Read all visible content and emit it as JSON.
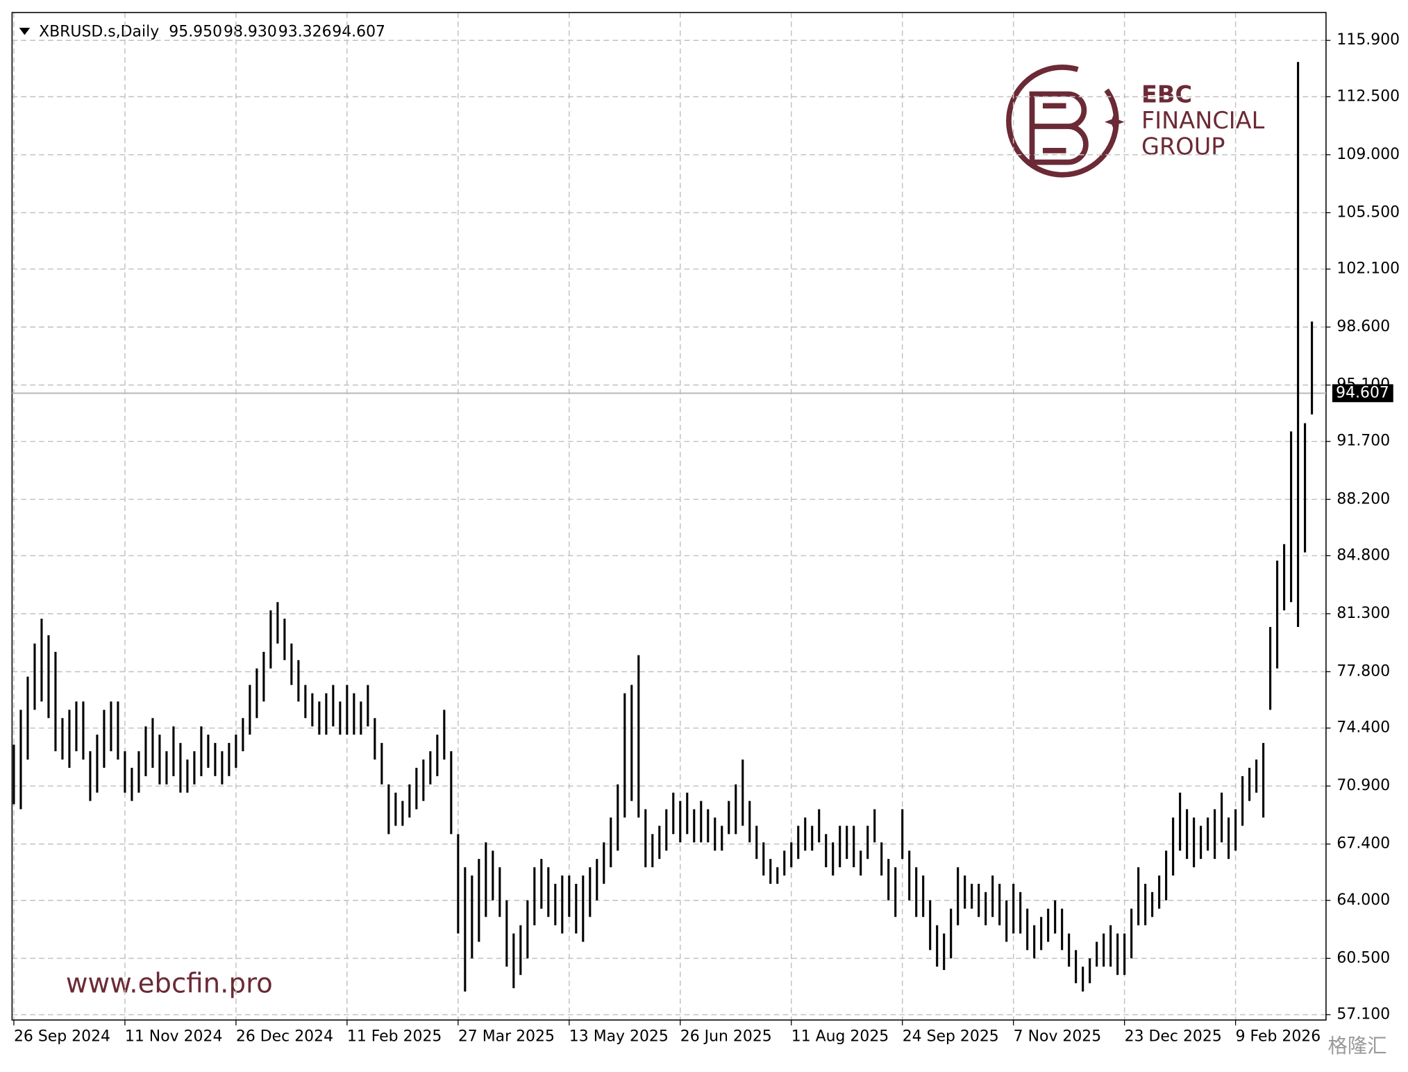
{
  "chart_data": {
    "type": "ohlc",
    "header": {
      "symbol": "XBRUSD.s,Daily",
      "open": "95.950",
      "high": "98.930",
      "low": "93.326",
      "close": "94.607"
    },
    "last_price": {
      "value": 94.607,
      "label": "94.607"
    },
    "ylim": [
      56.78,
      117.58
    ],
    "yticks": [
      {
        "value": 115.9,
        "label": "115.900"
      },
      {
        "value": 112.5,
        "label": "112.500"
      },
      {
        "value": 109.0,
        "label": "109.000"
      },
      {
        "value": 105.5,
        "label": "105.500"
      },
      {
        "value": 102.1,
        "label": "102.100"
      },
      {
        "value": 98.6,
        "label": "98.600"
      },
      {
        "value": 95.1,
        "label": "95.100"
      },
      {
        "value": 91.7,
        "label": "91.700"
      },
      {
        "value": 88.2,
        "label": "88.200"
      },
      {
        "value": 84.8,
        "label": "84.800"
      },
      {
        "value": 81.3,
        "label": "81.300"
      },
      {
        "value": 77.8,
        "label": "77.800"
      },
      {
        "value": 74.4,
        "label": "74.400"
      },
      {
        "value": 70.9,
        "label": "70.900"
      },
      {
        "value": 67.4,
        "label": "67.400"
      },
      {
        "value": 64.0,
        "label": "64.000"
      },
      {
        "value": 60.5,
        "label": "60.500"
      },
      {
        "value": 57.1,
        "label": "57.100"
      }
    ],
    "xlim": [
      0,
      188
    ],
    "xticks": [
      {
        "value": 0,
        "label": "26 Sep 2024"
      },
      {
        "value": 16,
        "label": "11 Nov 2024"
      },
      {
        "value": 32,
        "label": "26 Dec 2024"
      },
      {
        "value": 48,
        "label": "11 Feb 2025"
      },
      {
        "value": 64,
        "label": "27 Mar 2025"
      },
      {
        "value": 80,
        "label": "13 May 2025"
      },
      {
        "value": 96,
        "label": "26 Jun 2025"
      },
      {
        "value": 112,
        "label": "11 Aug 2025"
      },
      {
        "value": 128,
        "label": "24 Sep 2025"
      },
      {
        "value": 144,
        "label": "7 Nov 2025"
      },
      {
        "value": 160,
        "label": "23 Dec 2025"
      },
      {
        "value": 176,
        "label": "9 Feb 2026"
      }
    ],
    "grid": true,
    "color": "#000000",
    "high": [
      73.4,
      75.5,
      77.5,
      79.5,
      81,
      80,
      79,
      75,
      75.5,
      76,
      76,
      73,
      74,
      75.5,
      76,
      76,
      73,
      72,
      73,
      74.5,
      75,
      74,
      73,
      74.5,
      73.5,
      72.5,
      73,
      74.5,
      74,
      73.5,
      73,
      73.5,
      74,
      75,
      77,
      78,
      79,
      81.5,
      82,
      81,
      79.5,
      78.5,
      77,
      76.5,
      76,
      76.5,
      77,
      76,
      77,
      76.5,
      76,
      77,
      75,
      73.5,
      71,
      70.5,
      70,
      71,
      72,
      72.5,
      73,
      74,
      75.5,
      73,
      68,
      66,
      65.5,
      66.5,
      67.5,
      67,
      66,
      64,
      62,
      62.5,
      64,
      66,
      66.5,
      66,
      65,
      65.5,
      65.5,
      65,
      65.5,
      66,
      66.5,
      67.5,
      69,
      71,
      76.5,
      77,
      78.8,
      69.5,
      68,
      68.5,
      69.5,
      70.5,
      70,
      70.5,
      69.5,
      70,
      69.5,
      69,
      68.5,
      70,
      71,
      72.5,
      70,
      68.5,
      67.5,
      66.5,
      66,
      67,
      67.5,
      68.5,
      69,
      68.5,
      69.5,
      68,
      67.5,
      68.5,
      68.5,
      68.5,
      67,
      68.5,
      69.5,
      67.5,
      66.5,
      66,
      69.5,
      67,
      66,
      65.5,
      64,
      62.5,
      62,
      63.5,
      66,
      65.5,
      65,
      65,
      64.5,
      65.5,
      65,
      64,
      65,
      64.5,
      63.5,
      62.5,
      63,
      63.5,
      64,
      63.5,
      62,
      61,
      60,
      60.5,
      61.5,
      62,
      62.5,
      62,
      62,
      63.5,
      66,
      65,
      64.5,
      65.5,
      67,
      69,
      70.5,
      69.5,
      69,
      68.5,
      69,
      69.5,
      70.5,
      69,
      69.5,
      71.5,
      72,
      72.5,
      73.5,
      80.5,
      84.5,
      85.5,
      92.3,
      114.6,
      92.8,
      98.93
    ],
    "low": [
      69.8,
      69.5,
      72.5,
      75.5,
      76,
      75,
      73,
      72.5,
      72,
      73,
      72.5,
      70,
      70.5,
      72,
      73,
      72.5,
      70.5,
      70,
      70.5,
      71.5,
      72,
      71,
      71,
      71.5,
      70.5,
      70.5,
      71,
      71.5,
      72,
      71.5,
      71,
      71.5,
      72,
      73,
      74,
      75,
      76,
      78,
      79.5,
      78.5,
      77,
      76,
      75,
      74.5,
      74,
      74,
      74.5,
      74,
      74,
      74,
      74,
      74.5,
      72.5,
      71,
      68,
      68.5,
      68.5,
      69,
      69.5,
      70,
      71,
      71.5,
      72.5,
      68,
      62,
      58.5,
      60.5,
      61.5,
      63,
      64,
      63,
      60,
      58.7,
      59.5,
      60.5,
      62.5,
      63.5,
      63,
      62.5,
      62,
      63,
      62,
      61.5,
      63,
      64,
      65,
      66,
      67,
      69,
      70,
      69,
      66,
      66,
      66.5,
      67,
      68,
      67.5,
      68,
      67.5,
      67.5,
      67.5,
      67,
      67,
      68,
      68,
      68.5,
      67.5,
      66.5,
      65.5,
      65,
      65,
      65.5,
      66,
      66.5,
      67,
      67,
      67.5,
      66,
      65.5,
      66,
      66.5,
      66,
      65.5,
      66.5,
      67.5,
      65.5,
      64,
      63,
      66.5,
      64,
      63,
      63,
      61,
      60,
      59.8,
      60.5,
      62.5,
      63.5,
      63.5,
      63,
      62.5,
      63,
      62.5,
      61.5,
      62,
      62,
      61,
      60.5,
      61,
      61.5,
      62,
      61,
      60,
      59,
      58.5,
      59,
      60,
      60,
      60,
      59.5,
      59.5,
      60.5,
      62.5,
      62.5,
      63,
      63.5,
      64,
      65.5,
      67,
      66.5,
      66,
      66.5,
      67,
      66.5,
      67.5,
      66.5,
      67,
      68.5,
      70,
      70.5,
      69,
      75.5,
      78,
      81.5,
      82,
      80.5,
      85,
      93.326
    ]
  },
  "watermarks": {
    "logo_lines": [
      "EBC",
      "FINANCIAL",
      "GROUP"
    ],
    "url": "www.ebcfin.pro",
    "source": "格隆汇"
  }
}
